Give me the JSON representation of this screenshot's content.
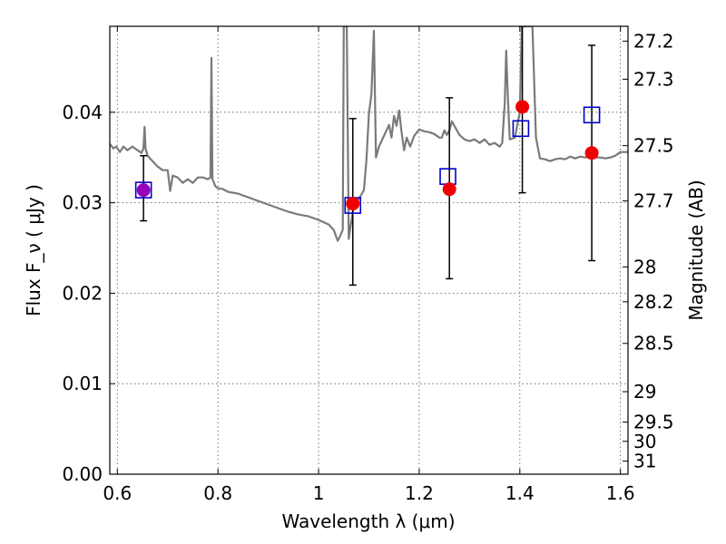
{
  "chart_data": {
    "type": "scatter",
    "xlabel": "Wavelength  λ (μm)",
    "ylabel": "Flux  F_ν  ( μJy )",
    "y2label": "Magnitude (AB)",
    "xlim": [
      0.585,
      1.615
    ],
    "ylim": [
      0.0,
      0.0495
    ],
    "grid": true,
    "x_ticks": [
      0.6,
      0.8,
      1.0,
      1.2,
      1.4,
      1.6
    ],
    "x_tick_labels": [
      "0.6",
      "0.8",
      "1",
      "1.2",
      "1.4",
      "1.6"
    ],
    "y_ticks": [
      0.0,
      0.01,
      0.02,
      0.03,
      0.04
    ],
    "y_tick_labels": [
      "0.00",
      "0.01",
      "0.02",
      "0.03",
      "0.04"
    ],
    "mag_ticks": [
      27.2,
      27.3,
      27.5,
      27.7,
      28,
      28.2,
      28.5,
      29,
      29.5,
      30,
      31
    ],
    "mag_tick_labels": [
      "27.2",
      "27.3",
      "27.5",
      "27.7",
      "28",
      "28.2",
      "28.5",
      "29",
      "29.5",
      "30",
      "31"
    ],
    "colors": {
      "spectrum": "#7a7a7a",
      "observed": "#ee0000",
      "model": "#0000cc",
      "first_point": "#9900bb",
      "errorbar": "#000000"
    },
    "series": [
      {
        "kind": "line",
        "points": [
          [
            0.585,
            0.0365
          ],
          [
            0.592,
            0.036
          ],
          [
            0.598,
            0.0362
          ],
          [
            0.605,
            0.0356
          ],
          [
            0.612,
            0.0362
          ],
          [
            0.62,
            0.0358
          ],
          [
            0.63,
            0.0362
          ],
          [
            0.64,
            0.0358
          ],
          [
            0.648,
            0.0355
          ],
          [
            0.652,
            0.036
          ],
          [
            0.654,
            0.0384
          ],
          [
            0.656,
            0.036
          ],
          [
            0.66,
            0.0352
          ],
          [
            0.67,
            0.0346
          ],
          [
            0.68,
            0.034
          ],
          [
            0.69,
            0.0336
          ],
          [
            0.7,
            0.0336
          ],
          [
            0.705,
            0.0313
          ],
          [
            0.71,
            0.033
          ],
          [
            0.72,
            0.0328
          ],
          [
            0.73,
            0.0322
          ],
          [
            0.74,
            0.0326
          ],
          [
            0.75,
            0.0322
          ],
          [
            0.76,
            0.0328
          ],
          [
            0.77,
            0.0328
          ],
          [
            0.78,
            0.0326
          ],
          [
            0.785,
            0.0328
          ],
          [
            0.787,
            0.046
          ],
          [
            0.789,
            0.0326
          ],
          [
            0.795,
            0.0318
          ],
          [
            0.8,
            0.0316
          ],
          [
            0.81,
            0.0315
          ],
          [
            0.82,
            0.0312
          ],
          [
            0.84,
            0.031
          ],
          [
            0.86,
            0.0306
          ],
          [
            0.88,
            0.0302
          ],
          [
            0.9,
            0.0298
          ],
          [
            0.92,
            0.0294
          ],
          [
            0.94,
            0.029
          ],
          [
            0.96,
            0.0287
          ],
          [
            0.98,
            0.0285
          ],
          [
            1.0,
            0.0281
          ],
          [
            1.02,
            0.0276
          ],
          [
            1.03,
            0.027
          ],
          [
            1.038,
            0.0258
          ],
          [
            1.042,
            0.0262
          ],
          [
            1.048,
            0.027
          ],
          [
            1.05,
            0.0495
          ],
          [
            1.056,
            0.0495
          ],
          [
            1.06,
            0.026
          ],
          [
            1.07,
            0.0298
          ],
          [
            1.08,
            0.0304
          ],
          [
            1.09,
            0.0314
          ],
          [
            1.095,
            0.0346
          ],
          [
            1.1,
            0.0398
          ],
          [
            1.105,
            0.042
          ],
          [
            1.11,
            0.049
          ],
          [
            1.114,
            0.035
          ],
          [
            1.12,
            0.0362
          ],
          [
            1.13,
            0.0374
          ],
          [
            1.14,
            0.0386
          ],
          [
            1.145,
            0.0372
          ],
          [
            1.15,
            0.0396
          ],
          [
            1.155,
            0.0385
          ],
          [
            1.16,
            0.0402
          ],
          [
            1.165,
            0.0378
          ],
          [
            1.17,
            0.0358
          ],
          [
            1.175,
            0.0372
          ],
          [
            1.182,
            0.0362
          ],
          [
            1.19,
            0.0374
          ],
          [
            1.2,
            0.0381
          ],
          [
            1.21,
            0.0379
          ],
          [
            1.22,
            0.0378
          ],
          [
            1.23,
            0.0376
          ],
          [
            1.24,
            0.0372
          ],
          [
            1.245,
            0.0372
          ],
          [
            1.25,
            0.038
          ],
          [
            1.255,
            0.0375
          ],
          [
            1.26,
            0.038
          ],
          [
            1.265,
            0.039
          ],
          [
            1.27,
            0.0385
          ],
          [
            1.28,
            0.0375
          ],
          [
            1.29,
            0.037
          ],
          [
            1.3,
            0.0368
          ],
          [
            1.31,
            0.037
          ],
          [
            1.32,
            0.0366
          ],
          [
            1.33,
            0.037
          ],
          [
            1.34,
            0.0364
          ],
          [
            1.35,
            0.0366
          ],
          [
            1.36,
            0.0362
          ],
          [
            1.365,
            0.0366
          ],
          [
            1.37,
            0.041
          ],
          [
            1.373,
            0.0468
          ],
          [
            1.376,
            0.042
          ],
          [
            1.38,
            0.037
          ],
          [
            1.39,
            0.0372
          ],
          [
            1.4,
            0.04
          ],
          [
            1.404,
            0.0495
          ],
          [
            1.415,
            0.0495
          ],
          [
            1.425,
            0.0495
          ],
          [
            1.432,
            0.0372
          ],
          [
            1.44,
            0.0349
          ],
          [
            1.45,
            0.0348
          ],
          [
            1.46,
            0.0346
          ],
          [
            1.47,
            0.0348
          ],
          [
            1.48,
            0.0349
          ],
          [
            1.49,
            0.0348
          ],
          [
            1.5,
            0.0351
          ],
          [
            1.51,
            0.0349
          ],
          [
            1.52,
            0.0351
          ],
          [
            1.53,
            0.035
          ],
          [
            1.54,
            0.0352
          ],
          [
            1.55,
            0.035
          ],
          [
            1.56,
            0.035
          ],
          [
            1.57,
            0.0349
          ],
          [
            1.58,
            0.035
          ],
          [
            1.59,
            0.0352
          ],
          [
            1.6,
            0.0356
          ],
          [
            1.615,
            0.0356
          ]
        ]
      },
      {
        "kind": "points-with-errors",
        "points": [
          {
            "x": 0.652,
            "y": 0.0314,
            "err_low": 0.028,
            "err_high": 0.0352
          },
          {
            "x": 1.068,
            "y": 0.0299,
            "err_low": 0.0209,
            "err_high": 0.0393
          },
          {
            "x": 1.26,
            "y": 0.0315,
            "err_low": 0.0216,
            "err_high": 0.0416
          },
          {
            "x": 1.405,
            "y": 0.0406,
            "err_low": 0.0311,
            "err_high": 0.0495
          },
          {
            "x": 1.543,
            "y": 0.0355,
            "err_low": 0.0236,
            "err_high": 0.0474
          }
        ]
      },
      {
        "kind": "squares",
        "points": [
          {
            "x": 0.652,
            "y": 0.0314
          },
          {
            "x": 1.068,
            "y": 0.0297
          },
          {
            "x": 1.257,
            "y": 0.0329
          },
          {
            "x": 1.402,
            "y": 0.0382
          },
          {
            "x": 1.543,
            "y": 0.0397
          }
        ]
      }
    ]
  }
}
